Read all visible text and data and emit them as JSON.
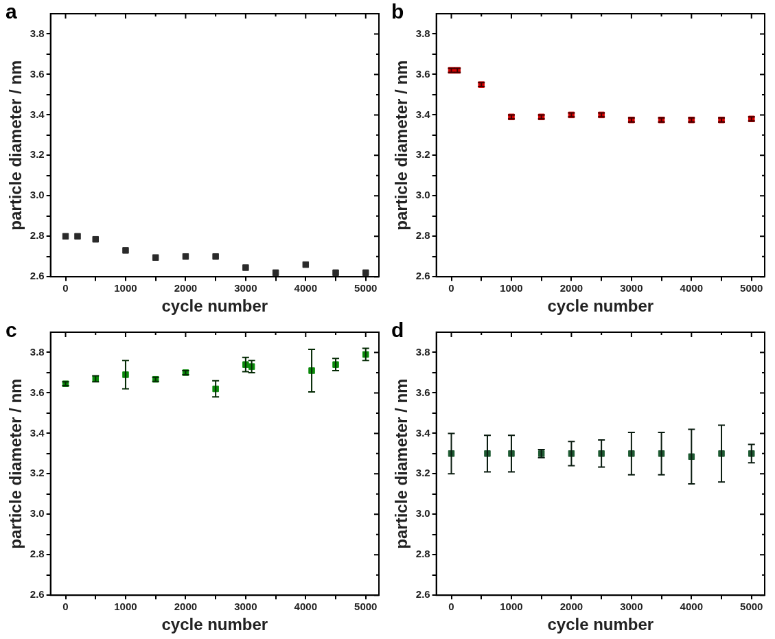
{
  "chart_data": [
    {
      "type": "scatter",
      "title": "a",
      "xlabel": "cycle number",
      "ylabel": "particle diameter / nm",
      "marker": "square",
      "grid": false,
      "xlim": [
        -250,
        5220
      ],
      "ylim": [
        2.6,
        3.9
      ],
      "xticks": [
        0,
        {
          "value": 500,
          "label": null
        },
        1000,
        {
          "value": 1500,
          "label": null
        },
        2000,
        {
          "value": 2500,
          "label": null
        },
        3000,
        {
          "value": 3500,
          "label": null
        },
        4000,
        {
          "value": 4500,
          "label": null
        },
        5000
      ],
      "yticks": [
        2.6,
        {
          "value": 2.7,
          "label": null
        },
        2.8,
        {
          "value": 2.9,
          "label": null
        },
        {
          "value": 3.0,
          "label": "3.0"
        },
        {
          "value": 3.1,
          "label": null
        },
        3.2,
        {
          "value": 3.3,
          "label": null
        },
        3.4,
        {
          "value": 3.5,
          "label": null
        },
        3.6,
        {
          "value": 3.7,
          "label": null
        },
        3.8
      ],
      "series": [
        {
          "color": "#2a2a2a",
          "x": [
            0,
            200,
            500,
            1000,
            1500,
            2000,
            2500,
            3000,
            3500,
            4000,
            4500,
            5000
          ],
          "values": [
            2.8,
            2.8,
            2.785,
            2.73,
            2.695,
            2.7,
            2.7,
            2.645,
            2.62,
            2.66,
            2.62,
            2.62
          ]
        }
      ]
    },
    {
      "type": "scatter",
      "title": "b",
      "xlabel": "cycle number",
      "ylabel": "particle diameter / nm",
      "marker": "square",
      "grid": false,
      "xlim": [
        -250,
        5220
      ],
      "ylim": [
        2.6,
        3.9
      ],
      "xticks": [
        0,
        {
          "value": 500,
          "label": null
        },
        1000,
        {
          "value": 1500,
          "label": null
        },
        2000,
        {
          "value": 2500,
          "label": null
        },
        3000,
        {
          "value": 3500,
          "label": null
        },
        4000,
        {
          "value": 4500,
          "label": null
        },
        5000
      ],
      "yticks": [
        2.6,
        {
          "value": 2.7,
          "label": null
        },
        2.8,
        {
          "value": 2.9,
          "label": null
        },
        {
          "value": 3.0,
          "label": "3.0"
        },
        {
          "value": 3.1,
          "label": null
        },
        3.2,
        {
          "value": 3.3,
          "label": null
        },
        3.4,
        {
          "value": 3.5,
          "label": null
        },
        3.6,
        {
          "value": 3.7,
          "label": null
        },
        3.8
      ],
      "series": [
        {
          "color": "#d40000",
          "x": [
            0,
            100,
            500,
            1000,
            1500,
            2000,
            2500,
            3000,
            3500,
            4000,
            4500,
            5000
          ],
          "values": [
            3.62,
            3.62,
            3.55,
            3.39,
            3.39,
            3.4,
            3.4,
            3.375,
            3.375,
            3.375,
            3.375,
            3.38
          ],
          "errors": [
            0.01,
            0.01,
            0.01,
            0.01,
            0.01,
            0.01,
            0.01,
            0.01,
            0.01,
            0.01,
            0.01,
            0.01
          ]
        }
      ]
    },
    {
      "type": "scatter",
      "title": "c",
      "xlabel": "cycle number",
      "ylabel": "particle diameter / nm",
      "marker": "square",
      "grid": false,
      "xlim": [
        -250,
        5220
      ],
      "ylim": [
        2.6,
        3.9
      ],
      "xticks": [
        0,
        {
          "value": 500,
          "label": null
        },
        1000,
        {
          "value": 1500,
          "label": null
        },
        2000,
        {
          "value": 2500,
          "label": null
        },
        3000,
        {
          "value": 3500,
          "label": null
        },
        4000,
        {
          "value": 4500,
          "label": null
        },
        5000
      ],
      "yticks": [
        2.6,
        {
          "value": 2.7,
          "label": null
        },
        2.8,
        {
          "value": 2.9,
          "label": null
        },
        {
          "value": 3.0,
          "label": "3.0"
        },
        {
          "value": 3.1,
          "label": null
        },
        3.2,
        {
          "value": 3.3,
          "label": null
        },
        3.4,
        {
          "value": 3.5,
          "label": null
        },
        3.6,
        {
          "value": 3.7,
          "label": null
        },
        3.8
      ],
      "series": [
        {
          "color": "#0a8a0a",
          "x": [
            0,
            500,
            1000,
            1500,
            2000,
            2500,
            3000,
            3100,
            4100,
            4500,
            5000
          ],
          "values": [
            3.645,
            3.67,
            3.69,
            3.667,
            3.7,
            3.62,
            3.74,
            3.73,
            3.71,
            3.74,
            3.79
          ],
          "errors": [
            0.01,
            0.015,
            0.07,
            0.01,
            0.01,
            0.04,
            0.035,
            0.03,
            0.105,
            0.03,
            0.03
          ]
        }
      ]
    },
    {
      "type": "scatter",
      "title": "d",
      "xlabel": "cycle number",
      "ylabel": "particle diameter / nm",
      "marker": "square",
      "grid": false,
      "xlim": [
        -250,
        5220
      ],
      "ylim": [
        2.6,
        3.9
      ],
      "xticks": [
        0,
        {
          "value": 500,
          "label": null
        },
        1000,
        {
          "value": 1500,
          "label": null
        },
        2000,
        {
          "value": 2500,
          "label": null
        },
        3000,
        {
          "value": 3500,
          "label": null
        },
        4000,
        {
          "value": 4500,
          "label": null
        },
        5000
      ],
      "yticks": [
        2.6,
        {
          "value": 2.7,
          "label": null
        },
        2.8,
        {
          "value": 2.9,
          "label": null
        },
        {
          "value": 3.0,
          "label": "3.0"
        },
        {
          "value": 3.1,
          "label": null
        },
        3.2,
        {
          "value": 3.3,
          "label": null
        },
        3.4,
        {
          "value": 3.5,
          "label": null
        },
        3.6,
        {
          "value": 3.7,
          "label": null
        },
        3.8
      ],
      "series": [
        {
          "color": "#1e5a32",
          "x": [
            0,
            600,
            1000,
            1500,
            2000,
            2500,
            3000,
            3500,
            4000,
            4500,
            5000
          ],
          "values": [
            3.3,
            3.3,
            3.3,
            3.3,
            3.3,
            3.3,
            3.3,
            3.3,
            3.285,
            3.3,
            3.3
          ],
          "errors": [
            0.1,
            0.09,
            0.09,
            0.02,
            0.06,
            0.067,
            0.105,
            0.105,
            0.135,
            0.14,
            0.045
          ]
        }
      ]
    }
  ]
}
